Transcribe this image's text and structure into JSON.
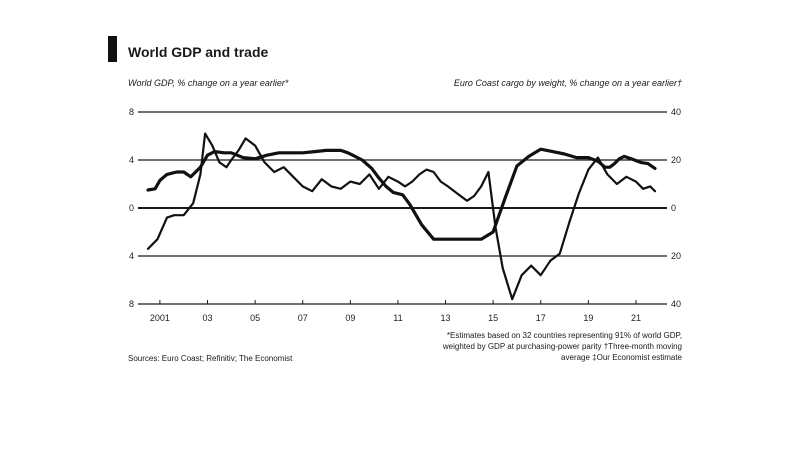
{
  "header": {
    "title": "World GDP and trade",
    "left_subtitle": "World GDP, % change on a year earlier*",
    "right_subtitle": "Euro Coast cargo by weight, % change on a year earlier†"
  },
  "footnote": "*Estimates based on 32 countries representing 91% of world GDP, weighted by GDP at purchasing-power parity †Three-month moving average   ‡Our Economist estimate",
  "source": "Sources: Euro Coast; Refinitiv; The Economist",
  "chart_data": {
    "type": "line",
    "x_tick_labels": [
      "2001",
      "03",
      "05",
      "07",
      "09",
      "11",
      "13",
      "15",
      "17",
      "19",
      "21"
    ],
    "x_ticks": [
      2001,
      2003,
      2005,
      2007,
      2009,
      2011,
      2013,
      2015,
      2017,
      2019,
      2021
    ],
    "xlim": [
      2000.5,
      2021.8
    ],
    "left_axis": {
      "ticks": [
        -8,
        -4,
        0,
        4,
        8
      ],
      "tick_labels": [
        "8",
        "4",
        "0",
        "4",
        "8"
      ],
      "ylim": [
        -8,
        8
      ]
    },
    "right_axis": {
      "ticks": [
        -40,
        -20,
        0,
        20,
        40
      ],
      "tick_labels": [
        "40",
        "20",
        "0",
        "20",
        "40"
      ],
      "ylim": [
        -40,
        40
      ]
    },
    "series": [
      {
        "axis": "left",
        "x": [
          2000.5,
          2000.8,
          2001.0,
          2001.3,
          2001.7,
          2002.0,
          2002.3,
          2002.7,
          2003.0,
          2003.3,
          2003.7,
          2004.0,
          2004.5,
          2005.0,
          2005.5,
          2006.0,
          2006.5,
          2007.0,
          2007.5,
          2008.0,
          2008.3,
          2008.6,
          2008.9,
          2009.1,
          2009.5,
          2009.9,
          2010.2,
          2010.5,
          2010.8,
          2011.2,
          2011.5,
          2012.0,
          2012.5,
          2013.0,
          2013.5,
          2014.0,
          2014.5,
          2015.0,
          2015.5,
          2016.0,
          2016.5,
          2017.0,
          2017.5,
          2018.0,
          2018.5,
          2019.0,
          2019.4,
          2019.7,
          2019.9,
          2020.1,
          2020.3,
          2020.5,
          2020.8,
          2021.2,
          2021.5,
          2021.8
        ],
        "y": [
          1.5,
          1.6,
          2.3,
          2.8,
          3.0,
          3.0,
          2.6,
          3.4,
          4.4,
          4.7,
          4.6,
          4.6,
          4.2,
          4.1,
          4.4,
          4.6,
          4.6,
          4.6,
          4.7,
          4.8,
          4.8,
          4.8,
          4.6,
          4.4,
          4.0,
          3.3,
          2.5,
          1.8,
          1.3,
          1.1,
          0.3,
          -1.4,
          -2.6,
          -2.6,
          -2.6,
          -2.6,
          -2.6,
          -2.0,
          0.8,
          3.5,
          4.3,
          4.9,
          4.7,
          4.5,
          4.2,
          4.2,
          3.9,
          3.4,
          3.4,
          3.7,
          4.1,
          4.3,
          4.1,
          3.8,
          3.7,
          3.3
        ]
      },
      {
        "axis": "right",
        "x": [
          2000.5,
          2000.9,
          2001.3,
          2001.6,
          2002.0,
          2002.4,
          2002.7,
          2002.9,
          2003.2,
          2003.5,
          2003.8,
          2004.0,
          2004.3,
          2004.6,
          2005.0,
          2005.4,
          2005.8,
          2006.2,
          2006.6,
          2007.0,
          2007.4,
          2007.8,
          2008.2,
          2008.6,
          2009.0,
          2009.4,
          2009.8,
          2010.2,
          2010.6,
          2011.0,
          2011.3,
          2011.6,
          2011.9,
          2012.2,
          2012.5,
          2012.8,
          2013.1,
          2013.5,
          2013.9,
          2014.2,
          2014.5,
          2014.8,
          2015.1,
          2015.4,
          2015.8,
          2016.2,
          2016.6,
          2017.0,
          2017.4,
          2017.8,
          2018.2,
          2018.6,
          2019.0,
          2019.4,
          2019.8,
          2020.2,
          2020.6,
          2021.0,
          2021.3,
          2021.6,
          2021.8
        ],
        "y": [
          -17,
          -13,
          -4,
          -3,
          -3,
          2,
          14,
          31,
          26,
          19,
          17,
          20,
          24,
          29,
          26,
          19,
          15,
          17,
          13,
          9,
          7,
          12,
          9,
          8,
          11,
          10,
          14,
          8,
          13,
          11,
          9,
          11,
          14,
          16,
          15,
          11,
          9,
          6,
          3,
          5,
          9,
          15,
          -8,
          -25,
          -38,
          -28,
          -24,
          -28,
          -22,
          -19,
          -6,
          6,
          16,
          21,
          14,
          10,
          13,
          11,
          8,
          9,
          7
        ]
      }
    ]
  }
}
